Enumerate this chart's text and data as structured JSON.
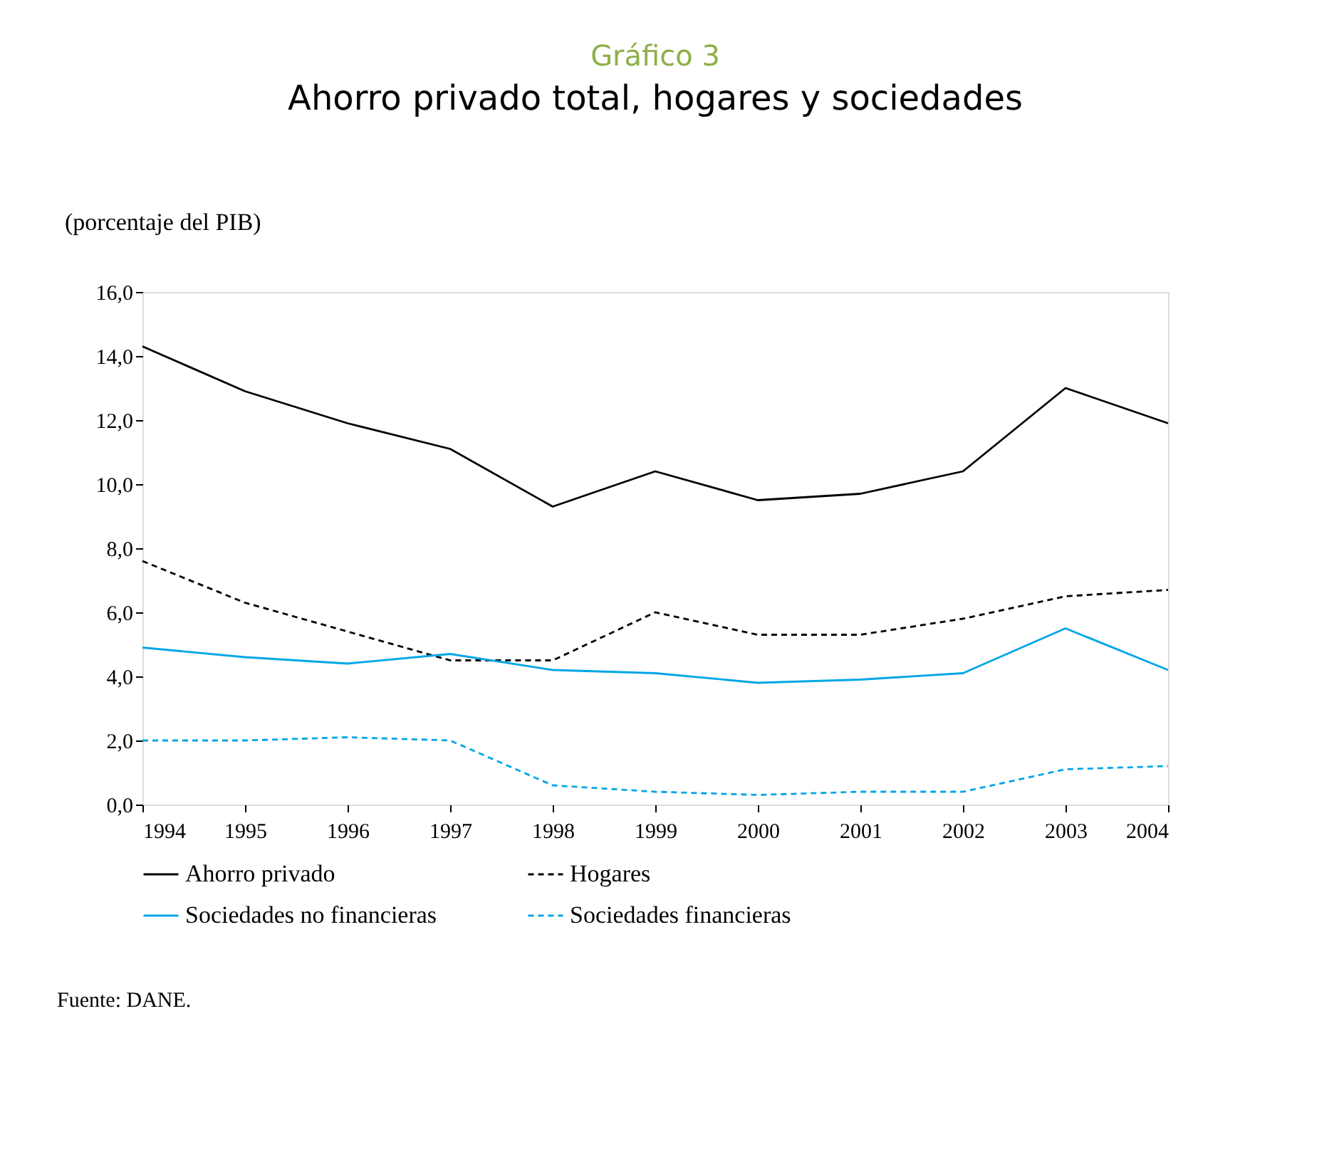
{
  "chart_data": {
    "type": "line",
    "title": "Gráfico 3",
    "subtitle": "Ahorro privado total, hogares y sociedades",
    "ylabel": "(porcentaje del PIB)",
    "x": [
      1994,
      1995,
      1996,
      1997,
      1998,
      1999,
      2000,
      2001,
      2002,
      2003,
      2004
    ],
    "series": [
      {
        "name": "Ahorro privado",
        "color": "#000000",
        "line_style": "solid",
        "values": [
          14.3,
          12.9,
          11.9,
          11.1,
          9.3,
          10.4,
          9.5,
          9.7,
          10.4,
          13.0,
          11.9
        ]
      },
      {
        "name": "Hogares",
        "color": "#000000",
        "line_style": "dashed",
        "values": [
          7.6,
          6.3,
          5.4,
          4.5,
          4.5,
          6.0,
          5.3,
          5.3,
          5.8,
          6.5,
          6.7
        ]
      },
      {
        "name": "Sociedades no financieras",
        "color": "#00a6e6",
        "line_style": "solid",
        "values": [
          4.9,
          4.6,
          4.4,
          4.7,
          4.2,
          4.1,
          3.8,
          3.9,
          4.1,
          5.5,
          4.2
        ]
      },
      {
        "name": "Sociedades financieras",
        "color": "#00a6e6",
        "line_style": "dashed",
        "values": [
          2.0,
          2.0,
          2.1,
          2.0,
          0.6,
          0.4,
          0.3,
          0.4,
          0.4,
          1.1,
          1.2
        ]
      }
    ],
    "xlim": [
      1994,
      2004
    ],
    "xticks": [
      1994,
      1995,
      1996,
      1997,
      1998,
      1999,
      2000,
      2001,
      2002,
      2003,
      2004
    ],
    "ylim": [
      0,
      16
    ],
    "yticks": [
      {
        "value": 0,
        "label": "0,0"
      },
      {
        "value": 2,
        "label": "2,0"
      },
      {
        "value": 4,
        "label": "4,0"
      },
      {
        "value": 6,
        "label": "6,0"
      },
      {
        "value": 8,
        "label": "8,0"
      },
      {
        "value": 10,
        "label": "10,0"
      },
      {
        "value": 12,
        "label": "12,0"
      },
      {
        "value": 14,
        "label": "14,0"
      },
      {
        "value": 16,
        "label": "16,0"
      }
    ],
    "grid": false,
    "legend": "bottom",
    "marker": "none",
    "annotations": [
      "Fuente: DANE."
    ]
  }
}
